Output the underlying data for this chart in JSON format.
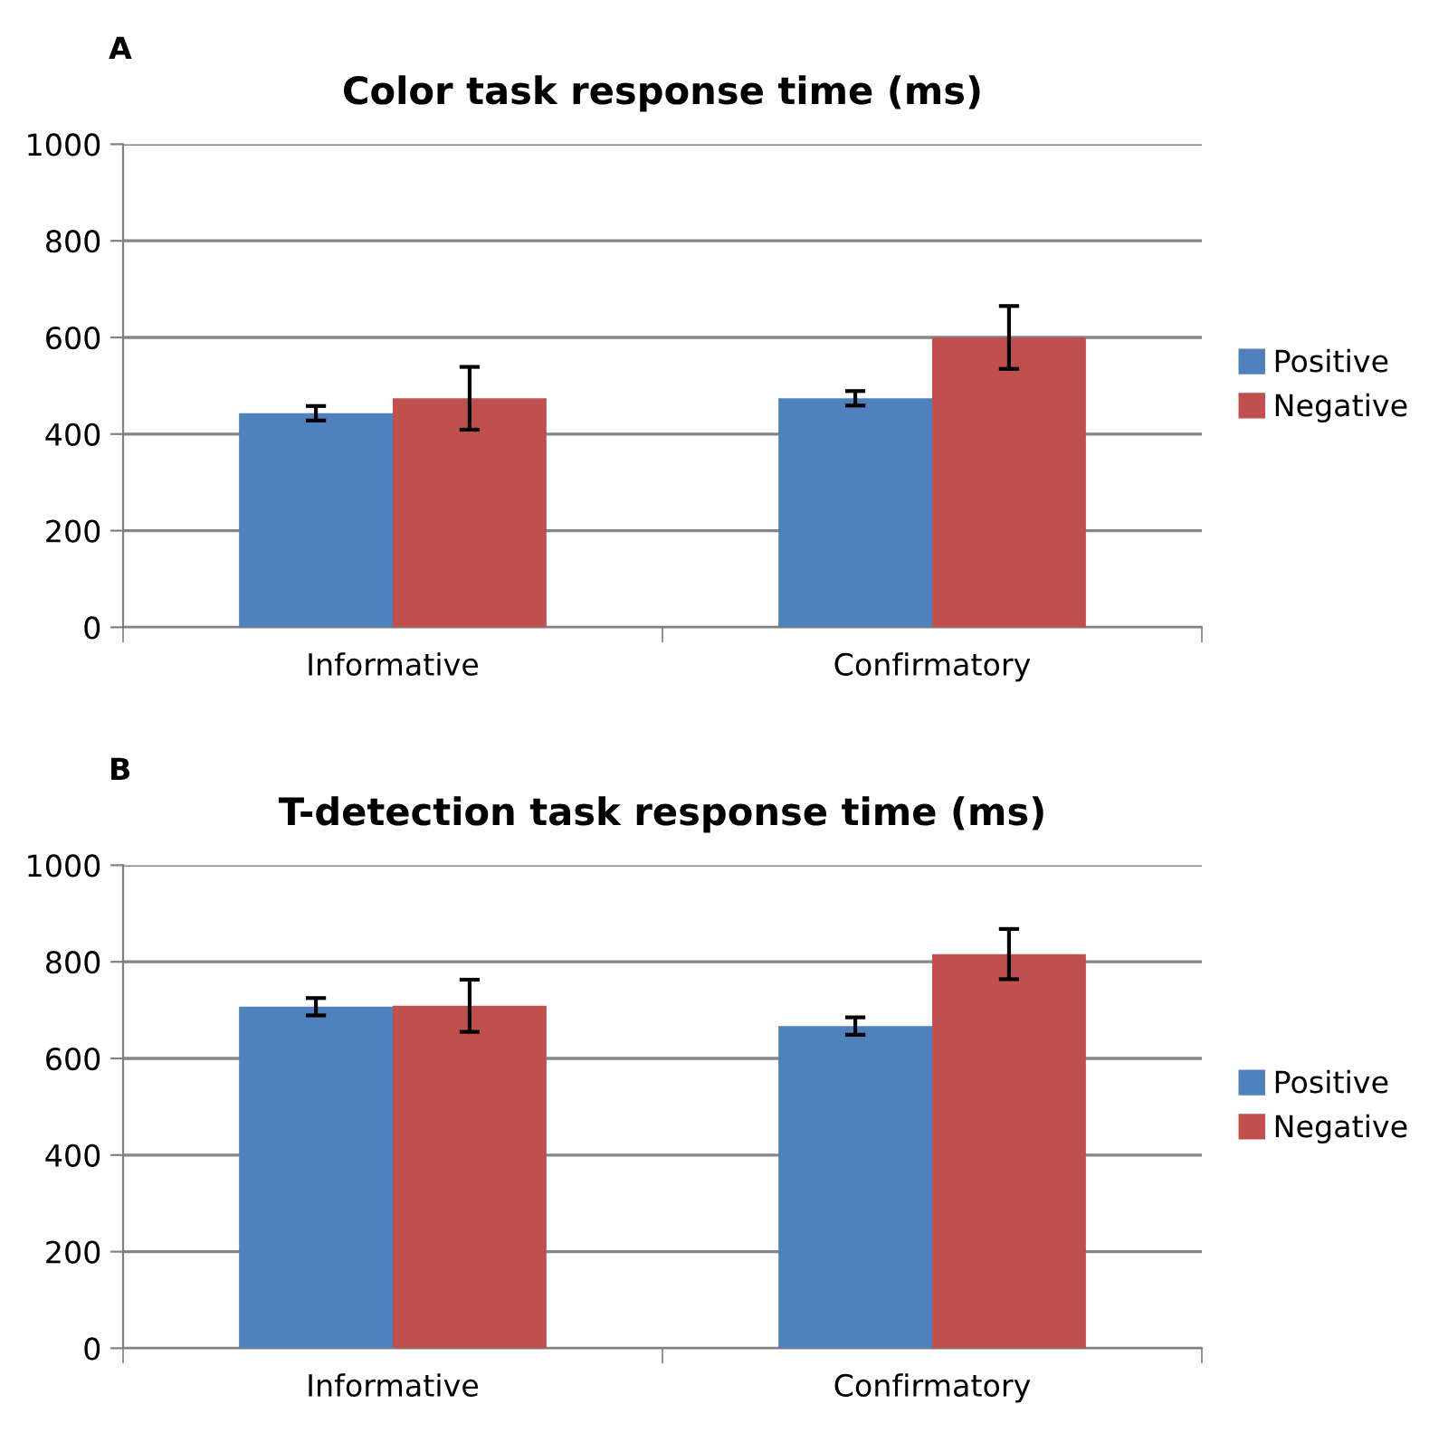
{
  "chart_data": [
    {
      "type": "bar",
      "title": "Color task response time (ms)",
      "annotations": [
        "A"
      ],
      "categories": [
        "Informative",
        "Confirmatory"
      ],
      "series": [
        {
          "name": "Positive",
          "color": "#4f81bd",
          "values": [
            443,
            474
          ],
          "errors": [
            15,
            15
          ]
        },
        {
          "name": "Negative",
          "color": "#c0504d",
          "values": [
            474,
            600
          ],
          "errors": [
            65,
            65
          ]
        }
      ],
      "ylim": [
        0,
        1000
      ],
      "yticks": [
        0,
        200,
        400,
        600,
        800,
        1000
      ],
      "grid": "y",
      "legend": "right"
    },
    {
      "type": "bar",
      "title": "T-detection task response time (ms)",
      "annotations": [
        "B"
      ],
      "categories": [
        "Informative",
        "Confirmatory"
      ],
      "series": [
        {
          "name": "Positive",
          "color": "#4f81bd",
          "values": [
            707,
            667
          ],
          "errors": [
            18,
            18
          ]
        },
        {
          "name": "Negative",
          "color": "#c0504d",
          "values": [
            709,
            816
          ],
          "errors": [
            54,
            52
          ]
        }
      ],
      "ylim": [
        0,
        1000
      ],
      "yticks": [
        0,
        200,
        400,
        600,
        800,
        1000
      ],
      "grid": "y",
      "legend": "right"
    }
  ]
}
